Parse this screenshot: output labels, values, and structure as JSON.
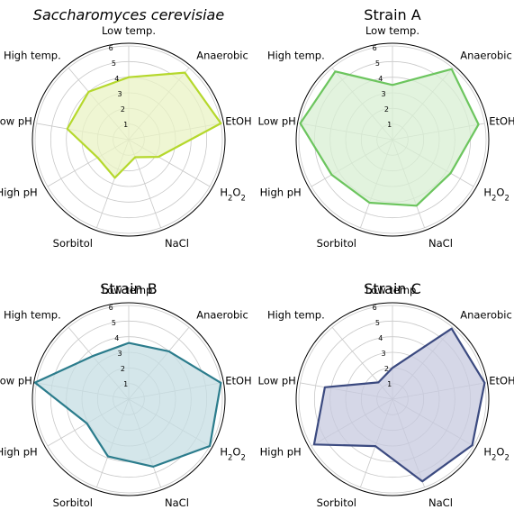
{
  "chart_data": [
    {
      "type": "radar",
      "title": "Saccharomyces cerevisiae",
      "title_italic": true,
      "color": "#b5d82c",
      "fill": "#e9f3c4",
      "categories": [
        "Low temp.",
        "Anaerobic",
        "EtOH",
        "H2O2",
        "NaCl",
        "Sorbitol",
        "High pH",
        "Low pH",
        "High temp."
      ],
      "values": [
        4.0,
        5.6,
        6.0,
        2.2,
        1.2,
        2.6,
        2.3,
        4.0,
        4.0
      ],
      "rlim": [
        0,
        6
      ],
      "rticks": [
        1,
        2,
        3,
        4,
        5,
        6
      ]
    },
    {
      "type": "radar",
      "title": "Strain A",
      "title_italic": false,
      "color": "#6cc55e",
      "fill": "#d8efd3",
      "categories": [
        "Low temp.",
        "Anaerobic",
        "EtOH",
        "H2O2",
        "NaCl",
        "Sorbitol",
        "High pH",
        "Low pH",
        "High temp."
      ],
      "values": [
        3.5,
        5.9,
        5.6,
        4.3,
        4.5,
        4.3,
        4.5,
        6.0,
        5.7
      ],
      "rlim": [
        0,
        6
      ],
      "rticks": [
        1,
        2,
        3,
        4,
        5,
        6
      ]
    },
    {
      "type": "radar",
      "title": "Strain B",
      "title_italic": false,
      "color": "#2b7c8c",
      "fill": "#c6dde3",
      "categories": [
        "Low temp.",
        "Anaerobic",
        "EtOH",
        "H2O2",
        "NaCl",
        "Sorbitol",
        "High pH",
        "Low pH",
        "High temp."
      ],
      "values": [
        3.6,
        4.0,
        6.0,
        6.0,
        4.6,
        3.9,
        3.1,
        6.1,
        3.6
      ],
      "rlim": [
        0,
        6
      ],
      "rticks": [
        1,
        2,
        3,
        4,
        5,
        6
      ]
    },
    {
      "type": "radar",
      "title": "Strain C",
      "title_italic": false,
      "color": "#3b4a80",
      "fill": "#c7cadf",
      "categories": [
        "Low temp.",
        "Anaerobic",
        "EtOH",
        "H2O2",
        "NaCl",
        "Sorbitol",
        "High pH",
        "Low pH",
        "High temp."
      ],
      "values": [
        2.0,
        5.9,
        6.0,
        5.9,
        5.6,
        3.2,
        5.8,
        4.4,
        1.4
      ],
      "rlim": [
        0,
        6
      ],
      "rticks": [
        1,
        2,
        3,
        4,
        5,
        6
      ]
    }
  ]
}
